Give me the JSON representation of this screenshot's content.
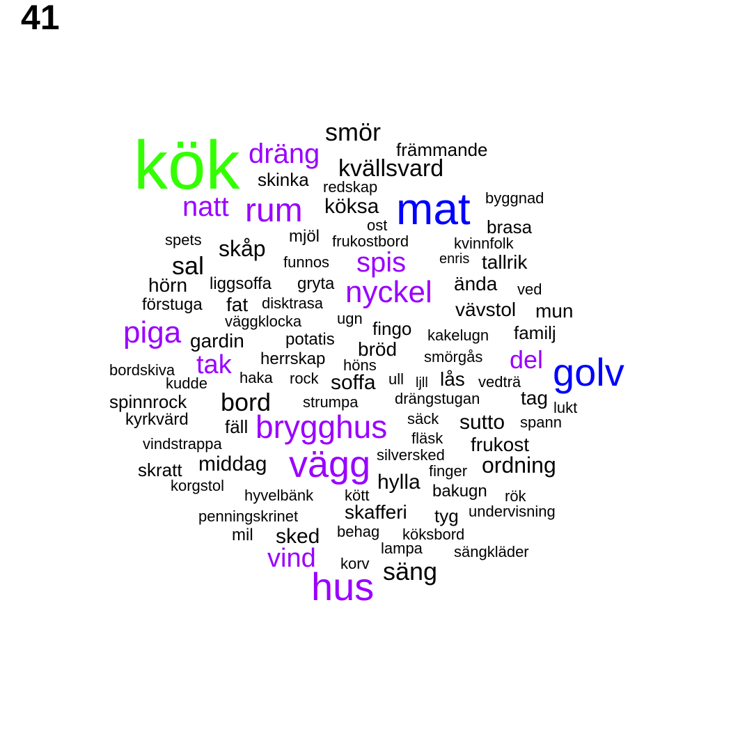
{
  "panel_label": "41",
  "colors": {
    "green": "#33ff00",
    "blue": "#0000ff",
    "purple": "#9900ff",
    "black": "#000000"
  },
  "words": [
    {
      "text": "kök",
      "color": "green"
    },
    {
      "text": "mat",
      "color": "blue"
    },
    {
      "text": "golv",
      "color": "blue"
    },
    {
      "text": "hus",
      "color": "purple"
    },
    {
      "text": "vägg",
      "color": "purple"
    },
    {
      "text": "brygghus",
      "color": "purple"
    },
    {
      "text": "rum",
      "color": "purple"
    },
    {
      "text": "nyckel",
      "color": "purple"
    },
    {
      "text": "piga",
      "color": "purple"
    },
    {
      "text": "dräng",
      "color": "purple"
    },
    {
      "text": "natt",
      "color": "purple"
    },
    {
      "text": "spis",
      "color": "purple"
    },
    {
      "text": "tak",
      "color": "purple"
    },
    {
      "text": "del",
      "color": "purple"
    },
    {
      "text": "vind",
      "color": "purple"
    },
    {
      "text": "smör",
      "color": "black"
    },
    {
      "text": "främmande",
      "color": "black"
    },
    {
      "text": "kvällsvard",
      "color": "black"
    },
    {
      "text": "skinka",
      "color": "black"
    },
    {
      "text": "redskap",
      "color": "black"
    },
    {
      "text": "byggnad",
      "color": "black"
    },
    {
      "text": "köksa",
      "color": "black"
    },
    {
      "text": "brasa",
      "color": "black"
    },
    {
      "text": "ost",
      "color": "black"
    },
    {
      "text": "mjöl",
      "color": "black"
    },
    {
      "text": "frukostbord",
      "color": "black"
    },
    {
      "text": "kvinnfolk",
      "color": "black"
    },
    {
      "text": "spets",
      "color": "black"
    },
    {
      "text": "skåp",
      "color": "black"
    },
    {
      "text": "enris",
      "color": "black"
    },
    {
      "text": "tallrik",
      "color": "black"
    },
    {
      "text": "sal",
      "color": "black"
    },
    {
      "text": "funnos",
      "color": "black"
    },
    {
      "text": "hörn",
      "color": "black"
    },
    {
      "text": "liggsoffa",
      "color": "black"
    },
    {
      "text": "gryta",
      "color": "black"
    },
    {
      "text": "ända",
      "color": "black"
    },
    {
      "text": "ved",
      "color": "black"
    },
    {
      "text": "förstuga",
      "color": "black"
    },
    {
      "text": "fat",
      "color": "black"
    },
    {
      "text": "disktrasa",
      "color": "black"
    },
    {
      "text": "vävstol",
      "color": "black"
    },
    {
      "text": "mun",
      "color": "black"
    },
    {
      "text": "väggklocka",
      "color": "black"
    },
    {
      "text": "ugn",
      "color": "black"
    },
    {
      "text": "fingo",
      "color": "black"
    },
    {
      "text": "kakelugn",
      "color": "black"
    },
    {
      "text": "familj",
      "color": "black"
    },
    {
      "text": "gardin",
      "color": "black"
    },
    {
      "text": "potatis",
      "color": "black"
    },
    {
      "text": "bröd",
      "color": "black"
    },
    {
      "text": "smörgås",
      "color": "black"
    },
    {
      "text": "bordskiva",
      "color": "black"
    },
    {
      "text": "herrskap",
      "color": "black"
    },
    {
      "text": "höns",
      "color": "black"
    },
    {
      "text": "kudde",
      "color": "black"
    },
    {
      "text": "haka",
      "color": "black"
    },
    {
      "text": "rock",
      "color": "black"
    },
    {
      "text": "soffa",
      "color": "black"
    },
    {
      "text": "ull",
      "color": "black"
    },
    {
      "text": "ljll",
      "color": "black"
    },
    {
      "text": "lås",
      "color": "black"
    },
    {
      "text": "vedträ",
      "color": "black"
    },
    {
      "text": "spinnrock",
      "color": "black"
    },
    {
      "text": "bord",
      "color": "black"
    },
    {
      "text": "strumpa",
      "color": "black"
    },
    {
      "text": "drängstugan",
      "color": "black"
    },
    {
      "text": "tag",
      "color": "black"
    },
    {
      "text": "lukt",
      "color": "black"
    },
    {
      "text": "kyrkvärd",
      "color": "black"
    },
    {
      "text": "fäll",
      "color": "black"
    },
    {
      "text": "säck",
      "color": "black"
    },
    {
      "text": "sutto",
      "color": "black"
    },
    {
      "text": "spann",
      "color": "black"
    },
    {
      "text": "vindstrappa",
      "color": "black"
    },
    {
      "text": "fläsk",
      "color": "black"
    },
    {
      "text": "frukost",
      "color": "black"
    },
    {
      "text": "skratt",
      "color": "black"
    },
    {
      "text": "middag",
      "color": "black"
    },
    {
      "text": "silversked",
      "color": "black"
    },
    {
      "text": "ordning",
      "color": "black"
    },
    {
      "text": "finger",
      "color": "black"
    },
    {
      "text": "korgstol",
      "color": "black"
    },
    {
      "text": "hylla",
      "color": "black"
    },
    {
      "text": "hyvelbänk",
      "color": "black"
    },
    {
      "text": "kött",
      "color": "black"
    },
    {
      "text": "bakugn",
      "color": "black"
    },
    {
      "text": "rök",
      "color": "black"
    },
    {
      "text": "penningskrinet",
      "color": "black"
    },
    {
      "text": "skafferi",
      "color": "black"
    },
    {
      "text": "tyg",
      "color": "black"
    },
    {
      "text": "undervisning",
      "color": "black"
    },
    {
      "text": "mil",
      "color": "black"
    },
    {
      "text": "sked",
      "color": "black"
    },
    {
      "text": "behag",
      "color": "black"
    },
    {
      "text": "köksbord",
      "color": "black"
    },
    {
      "text": "lampa",
      "color": "black"
    },
    {
      "text": "sängkläder",
      "color": "black"
    },
    {
      "text": "korv",
      "color": "black"
    },
    {
      "text": "säng",
      "color": "black"
    }
  ]
}
